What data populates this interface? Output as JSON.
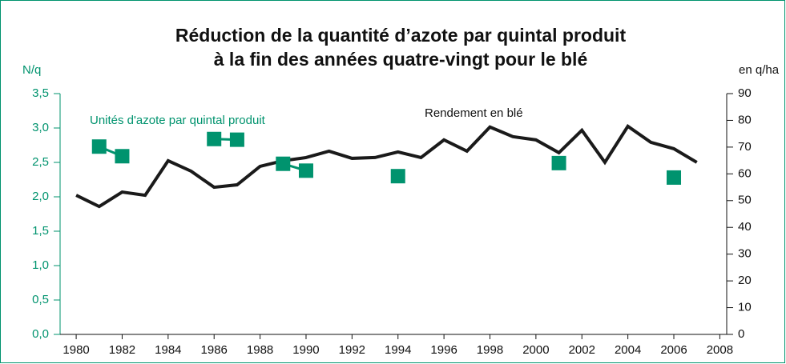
{
  "chart_data": {
    "type": "line",
    "title": [
      "Réduction de la quantité d’azote par quintal produit",
      "à la fin des années quatre-vingt pour le blé"
    ],
    "ylabel": "N/q",
    "y2label": "en q/ha",
    "x": [
      1980,
      1981,
      1982,
      1983,
      1984,
      1985,
      1986,
      1987,
      1988,
      1989,
      1990,
      1991,
      1992,
      1993,
      1994,
      1995,
      1996,
      1997,
      1998,
      1999,
      2000,
      2001,
      2002,
      2003,
      2004,
      2005,
      2006,
      2007
    ],
    "series": [
      {
        "name": "Unités d'azote par quintal produit",
        "color": "#00936e",
        "axis": "y",
        "values": [
          null,
          2.73,
          2.59,
          null,
          null,
          null,
          2.84,
          2.83,
          null,
          2.48,
          2.38,
          null,
          null,
          null,
          2.3,
          null,
          null,
          null,
          null,
          null,
          null,
          2.49,
          null,
          null,
          null,
          null,
          2.28,
          null
        ]
      },
      {
        "name": "Rendement en blé",
        "color": "#1a1a1a",
        "axis": "y2",
        "values": [
          52.0,
          47.8,
          53.2,
          52.0,
          64.9,
          61.0,
          55.0,
          55.9,
          62.8,
          64.9,
          66.1,
          68.5,
          65.8,
          66.1,
          68.2,
          66.1,
          72.7,
          68.5,
          77.5,
          73.9,
          72.7,
          67.9,
          76.3,
          64.3,
          77.8,
          71.8,
          69.4,
          64.3
        ]
      }
    ],
    "xlim": [
      1979.3,
      2008.3
    ],
    "xticks": [
      1980,
      1982,
      1984,
      1986,
      1988,
      1990,
      1992,
      1994,
      1996,
      1998,
      2000,
      2002,
      2004,
      2006,
      2008
    ],
    "ylim": [
      0,
      3.5
    ],
    "yticks": [
      {
        "value": 0,
        "label": "0,0"
      },
      {
        "value": 0.5,
        "label": "0,5"
      },
      {
        "value": 1,
        "label": "1,0"
      },
      {
        "value": 1.5,
        "label": "1,5"
      },
      {
        "value": 2,
        "label": "2,0"
      },
      {
        "value": 2.5,
        "label": "2,5"
      },
      {
        "value": 3,
        "label": "3,0"
      },
      {
        "value": 3.5,
        "label": "3,5"
      }
    ],
    "y2lim": [
      0,
      90
    ],
    "y2ticks": [
      0,
      10,
      20,
      30,
      40,
      50,
      60,
      70,
      80,
      90
    ]
  }
}
